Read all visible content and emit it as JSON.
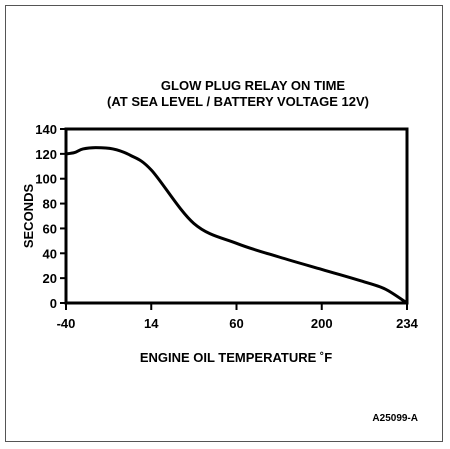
{
  "chart_data": {
    "type": "line",
    "title": "GLOW PLUG RELAY ON TIME",
    "subtitle": "(AT SEA LEVEL / BATTERY VOLTAGE 12V)",
    "xlabel": "ENGINE OIL TEMPERATURE ˚F",
    "ylabel": "SECONDS",
    "x_ticks": [
      "-40",
      "14",
      "60",
      "200",
      "234"
    ],
    "y_ticks": [
      0,
      20,
      40,
      60,
      80,
      100,
      120,
      140
    ],
    "ylim": [
      0,
      140
    ],
    "grid": false,
    "series": [
      {
        "tick_position": [
          0,
          0.1,
          0.2,
          0.35,
          0.55,
          0.75,
          1.0,
          1.5,
          2.0,
          2.5,
          3.0,
          3.5,
          3.75,
          4.0
        ],
        "y": [
          120,
          121,
          124,
          125,
          124,
          119,
          107,
          64,
          48,
          37,
          27,
          17,
          11,
          0
        ]
      }
    ],
    "color": "#000000",
    "figure_id": "A25099-A"
  }
}
